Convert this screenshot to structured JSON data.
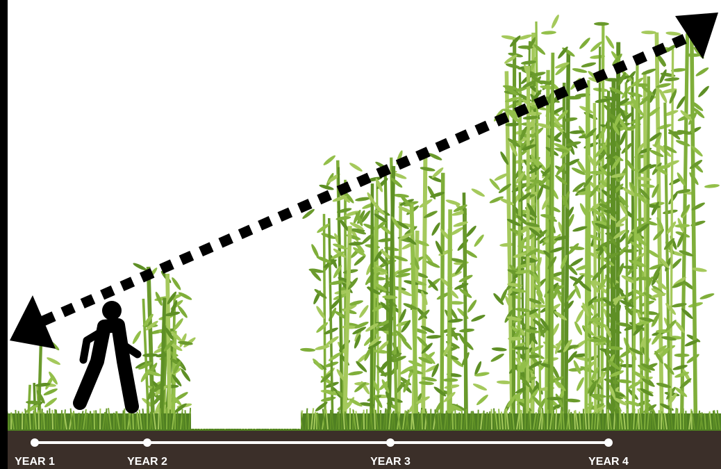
{
  "timeline": {
    "labels": [
      "YEAR 1",
      "YEAR 2",
      "YEAR 3",
      "YEAR 4"
    ]
  }
}
